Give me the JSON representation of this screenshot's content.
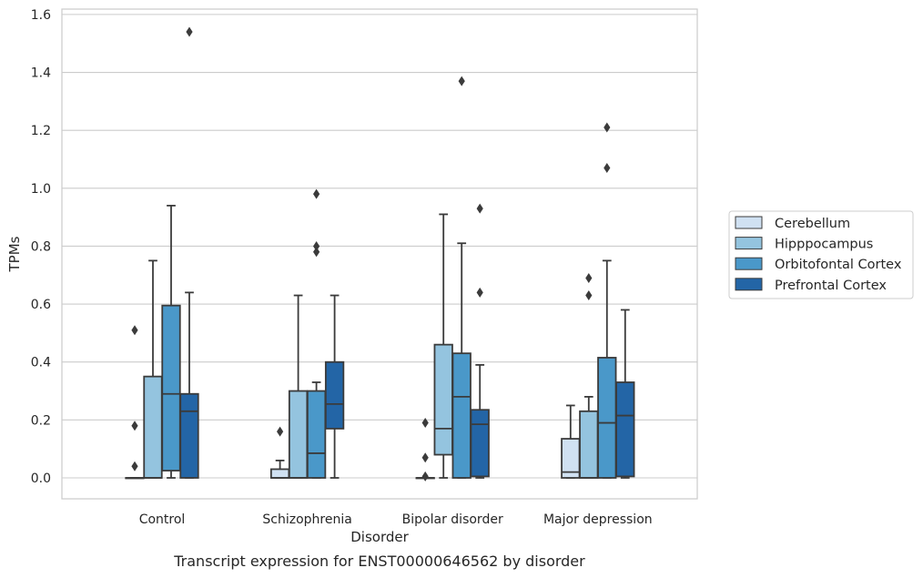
{
  "chart_data": {
    "type": "boxplot",
    "caption": "Transcript expression for ENST00000646562 by disorder",
    "xlabel": "Disorder",
    "ylabel": "TPMs",
    "ylim": [
      -0.075,
      1.62
    ],
    "yticks": [
      0.0,
      0.2,
      0.4,
      0.6,
      0.8,
      1.0,
      1.2,
      1.4,
      1.6
    ],
    "ytick_labels": [
      "0.0",
      "0.2",
      "0.4",
      "0.6",
      "0.8",
      "1.0",
      "1.2",
      "1.4",
      "1.6"
    ],
    "grid": "horizontal",
    "legend_position": "right",
    "categories": [
      "Control",
      "Schizophrenia",
      "Bipolar disorder",
      "Major depression"
    ],
    "series": [
      {
        "name": "Cerebellum",
        "color": "#d0e1f2",
        "boxes": [
          {
            "whisker_low": 0.0,
            "q1": 0.0,
            "median": 0.0,
            "q3": 0.0,
            "whisker_high": 0.0,
            "outliers": [
              0.04,
              0.18,
              0.51
            ]
          },
          {
            "whisker_low": 0.0,
            "q1": 0.0,
            "median": 0.0,
            "q3": 0.03,
            "whisker_high": 0.06,
            "outliers": [
              0.16
            ]
          },
          {
            "whisker_low": 0.0,
            "q1": 0.0,
            "median": 0.0,
            "q3": 0.0,
            "whisker_high": 0.0,
            "outliers": [
              0.005,
              0.07,
              0.19
            ]
          },
          {
            "whisker_low": 0.0,
            "q1": 0.0,
            "median": 0.02,
            "q3": 0.135,
            "whisker_high": 0.25,
            "outliers": []
          }
        ]
      },
      {
        "name": "Hipppocampus",
        "color": "#94c4df",
        "boxes": [
          {
            "whisker_low": 0.0,
            "q1": 0.0,
            "median": 0.0,
            "q3": 0.35,
            "whisker_high": 0.75,
            "outliers": []
          },
          {
            "whisker_low": 0.0,
            "q1": 0.0,
            "median": 0.0,
            "q3": 0.3,
            "whisker_high": 0.63,
            "outliers": []
          },
          {
            "whisker_low": 0.0,
            "q1": 0.08,
            "median": 0.17,
            "q3": 0.46,
            "whisker_high": 0.91,
            "outliers": []
          },
          {
            "whisker_low": 0.0,
            "q1": 0.0,
            "median": 0.0,
            "q3": 0.23,
            "whisker_high": 0.28,
            "outliers": [
              0.63,
              0.69
            ]
          }
        ]
      },
      {
        "name": "Orbitofontal Cortex",
        "color": "#4a98c9",
        "boxes": [
          {
            "whisker_low": 0.0,
            "q1": 0.025,
            "median": 0.29,
            "q3": 0.595,
            "whisker_high": 0.94,
            "outliers": []
          },
          {
            "whisker_low": 0.0,
            "q1": 0.0,
            "median": 0.085,
            "q3": 0.3,
            "whisker_high": 0.33,
            "outliers": [
              0.78,
              0.8,
              0.98
            ]
          },
          {
            "whisker_low": 0.0,
            "q1": 0.0,
            "median": 0.28,
            "q3": 0.43,
            "whisker_high": 0.81,
            "outliers": [
              1.37
            ]
          },
          {
            "whisker_low": 0.0,
            "q1": 0.0,
            "median": 0.19,
            "q3": 0.415,
            "whisker_high": 0.75,
            "outliers": [
              1.07,
              1.21
            ]
          }
        ]
      },
      {
        "name": "Prefrontal Cortex",
        "color": "#2365a6",
        "boxes": [
          {
            "whisker_low": 0.0,
            "q1": 0.0,
            "median": 0.23,
            "q3": 0.29,
            "whisker_high": 0.64,
            "outliers": [
              1.54
            ]
          },
          {
            "whisker_low": 0.0,
            "q1": 0.17,
            "median": 0.255,
            "q3": 0.4,
            "whisker_high": 0.63,
            "outliers": []
          },
          {
            "whisker_low": 0.0,
            "q1": 0.005,
            "median": 0.185,
            "q3": 0.235,
            "whisker_high": 0.39,
            "outliers": [
              0.64,
              0.93
            ]
          },
          {
            "whisker_low": 0.0,
            "q1": 0.005,
            "median": 0.215,
            "q3": 0.33,
            "whisker_high": 0.58,
            "outliers": []
          }
        ]
      }
    ]
  }
}
